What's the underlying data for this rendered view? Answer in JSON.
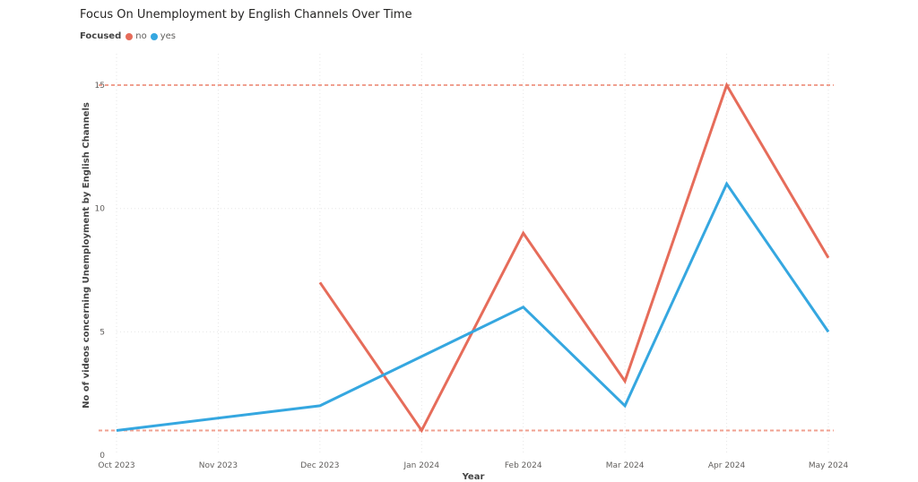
{
  "chart_data": {
    "type": "line",
    "title": "Focus On Unemployment by English Channels Over Time",
    "legend": {
      "title": "Focused",
      "position": "top-left"
    },
    "xlabel": "Year",
    "ylabel": "No of videos concerning Unemployment by English Channels",
    "x": [
      "Oct 2023",
      "Nov 2023",
      "Dec 2023",
      "Jan 2024",
      "Feb 2024",
      "Mar 2024",
      "Apr 2024",
      "May 2024"
    ],
    "ylim": [
      0,
      17
    ],
    "yticks": [
      0,
      5,
      10,
      15
    ],
    "grid": true,
    "series": [
      {
        "name": "no",
        "color": "#e66c5a",
        "values": [
          null,
          null,
          7,
          1,
          9,
          3,
          15,
          8
        ]
      },
      {
        "name": "yes",
        "color": "#35a7e0",
        "values": [
          1,
          null,
          2,
          4,
          6,
          2,
          11,
          5
        ]
      }
    ],
    "reference_lines": [
      {
        "y": 15,
        "color": "#f0a090"
      },
      {
        "y": 1,
        "color": "#f0a090"
      }
    ]
  }
}
